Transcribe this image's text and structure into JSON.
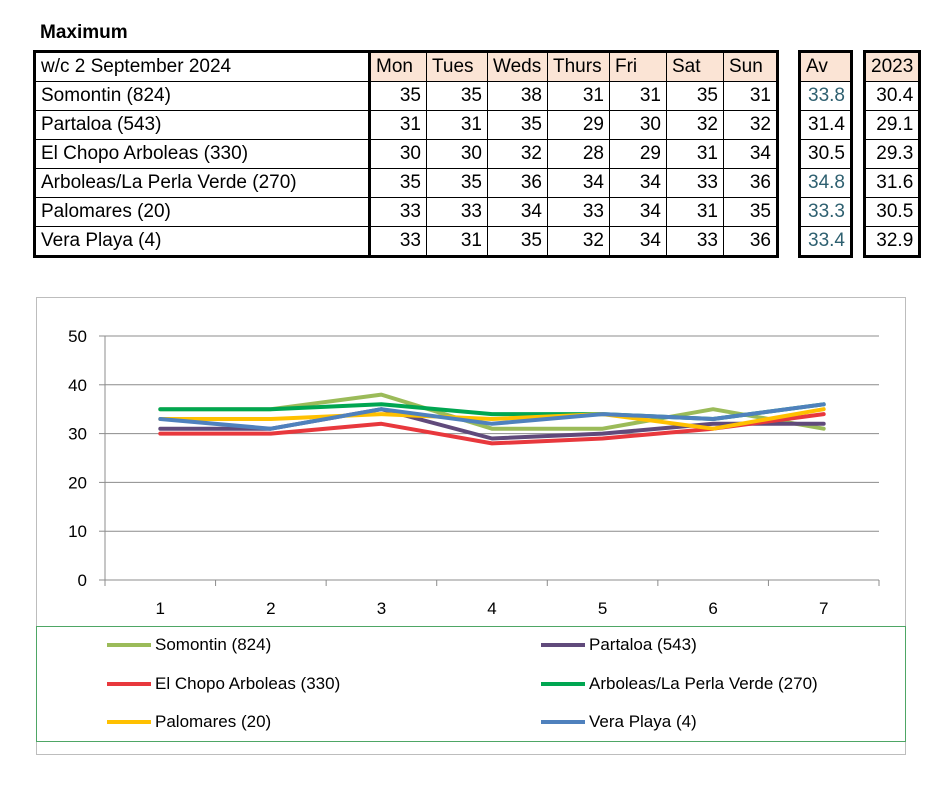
{
  "title": "Maximum",
  "table": {
    "week_label": "w/c  2 September 2024",
    "days": [
      "Mon",
      "Tues",
      "Weds",
      "Thurs",
      "Fri",
      "Sat",
      "Sun"
    ],
    "av_header": "Av",
    "year_header": "2023",
    "rows": [
      {
        "name": "Somontin (824)",
        "values": [
          "35",
          "35",
          "38",
          "31",
          "31",
          "35",
          "31"
        ],
        "av": "33.8",
        "prev": "30.4"
      },
      {
        "name": "Partaloa (543)",
        "values": [
          "31",
          "31",
          "35",
          "29",
          "30",
          "32",
          "32"
        ],
        "av": "31.4",
        "prev": "29.1"
      },
      {
        "name": "El Chopo  Arboleas (330)",
        "values": [
          "30",
          "30",
          "32",
          "28",
          "29",
          "31",
          "34"
        ],
        "av": "30.5",
        "prev": "29.3"
      },
      {
        "name": "Arboleas/La Perla Verde (270)",
        "values": [
          "35",
          "35",
          "36",
          "34",
          "34",
          "33",
          "36"
        ],
        "av": "34.8",
        "prev": "31.6"
      },
      {
        "name": "Palomares (20)",
        "values": [
          "33",
          "33",
          "34",
          "33",
          "34",
          "31",
          "35"
        ],
        "av": "33.3",
        "prev": "30.5"
      },
      {
        "name": "Vera Playa (4)",
        "values": [
          "33",
          "31",
          "35",
          "32",
          "34",
          "33",
          "36"
        ],
        "av": "33.4",
        "prev": "32.9"
      }
    ],
    "teal_av_rows": [
      0,
      3,
      4,
      5
    ]
  },
  "chart_data": {
    "type": "line",
    "x": [
      1,
      2,
      3,
      4,
      5,
      6,
      7
    ],
    "ylim": [
      0,
      50
    ],
    "yticks": [
      0,
      10,
      20,
      30,
      40,
      50
    ],
    "grid": true,
    "legend_position": "bottom",
    "series": [
      {
        "name": "Somontin (824)",
        "color": "#9bbb59",
        "values": [
          35,
          35,
          38,
          31,
          31,
          35,
          31
        ]
      },
      {
        "name": "Partaloa (543)",
        "color": "#604a7b",
        "values": [
          31,
          31,
          35,
          29,
          30,
          32,
          32
        ]
      },
      {
        "name": "El Chopo  Arboleas (330)",
        "color": "#e8383d",
        "values": [
          30,
          30,
          32,
          28,
          29,
          31,
          34
        ]
      },
      {
        "name": "Arboleas/La Perla Verde (270)",
        "color": "#00a651",
        "values": [
          35,
          35,
          36,
          34,
          34,
          33,
          36
        ]
      },
      {
        "name": "Palomares (20)",
        "color": "#ffc000",
        "values": [
          33,
          33,
          34,
          33,
          34,
          31,
          35
        ]
      },
      {
        "name": "Vera Playa (4)",
        "color": "#4f81bd",
        "values": [
          33,
          31,
          35,
          32,
          34,
          33,
          36
        ]
      }
    ]
  }
}
